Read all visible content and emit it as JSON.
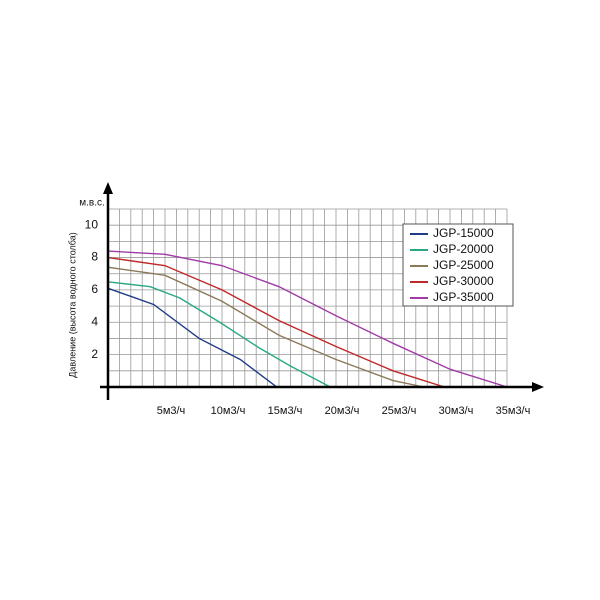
{
  "chart_data": {
    "type": "line",
    "y_unit": "м.в.с.",
    "ylabel": "Давление (высота водного столба)",
    "xlim": [
      0,
      36
    ],
    "ylim": [
      0,
      11
    ],
    "xticks": [
      {
        "value": 5,
        "label": "5м3/ч"
      },
      {
        "value": 10,
        "label": "10м3/ч"
      },
      {
        "value": 15,
        "label": "15м3/ч"
      },
      {
        "value": 20,
        "label": "20м3/ч"
      },
      {
        "value": 25,
        "label": "25м3/ч"
      },
      {
        "value": 30,
        "label": "30м3/ч"
      },
      {
        "value": 35,
        "label": "35м3/ч"
      }
    ],
    "yticks": [
      2,
      4,
      6,
      8,
      10
    ],
    "xgrid": [
      0,
      1,
      2,
      3,
      4,
      5,
      6,
      7,
      8,
      9,
      10,
      11,
      12,
      13,
      14,
      15,
      16,
      17,
      18,
      19,
      20,
      21,
      22,
      23,
      24,
      25,
      26,
      27,
      28,
      29,
      30,
      31,
      32,
      33,
      34,
      35
    ],
    "ygrid": [
      1,
      2,
      3,
      4,
      5,
      6,
      7,
      8,
      9,
      10,
      11
    ],
    "legend": "top-right",
    "series": [
      {
        "name": "JGP-15000",
        "color": "#1f3c88",
        "x": [
          0,
          4,
          8,
          11.6,
          14.8
        ],
        "values": [
          6.1,
          5.1,
          3.0,
          1.7,
          0
        ]
      },
      {
        "name": "JGP-20000",
        "color": "#2aa886",
        "x": [
          0,
          3.7,
          6.3,
          9.8,
          13.3,
          16,
          19.5
        ],
        "values": [
          6.5,
          6.2,
          5.5,
          4.0,
          2.4,
          1.3,
          0
        ]
      },
      {
        "name": "JGP-25000",
        "color": "#8b7a5a",
        "x": [
          0,
          5,
          10,
          15,
          20,
          25,
          27.7
        ],
        "values": [
          7.4,
          6.9,
          5.3,
          3.2,
          1.7,
          0.4,
          0
        ]
      },
      {
        "name": "JGP-30000",
        "color": "#c0282a",
        "x": [
          0,
          5,
          10,
          15,
          20,
          25,
          29.5
        ],
        "values": [
          8.0,
          7.5,
          6.0,
          4.1,
          2.5,
          1.0,
          0
        ]
      },
      {
        "name": "JGP-35000",
        "color": "#a23aa8",
        "x": [
          0,
          5,
          10,
          15,
          20,
          25,
          30,
          35
        ],
        "values": [
          8.4,
          8.2,
          7.5,
          6.2,
          4.4,
          2.7,
          1.1,
          0
        ]
      }
    ]
  }
}
